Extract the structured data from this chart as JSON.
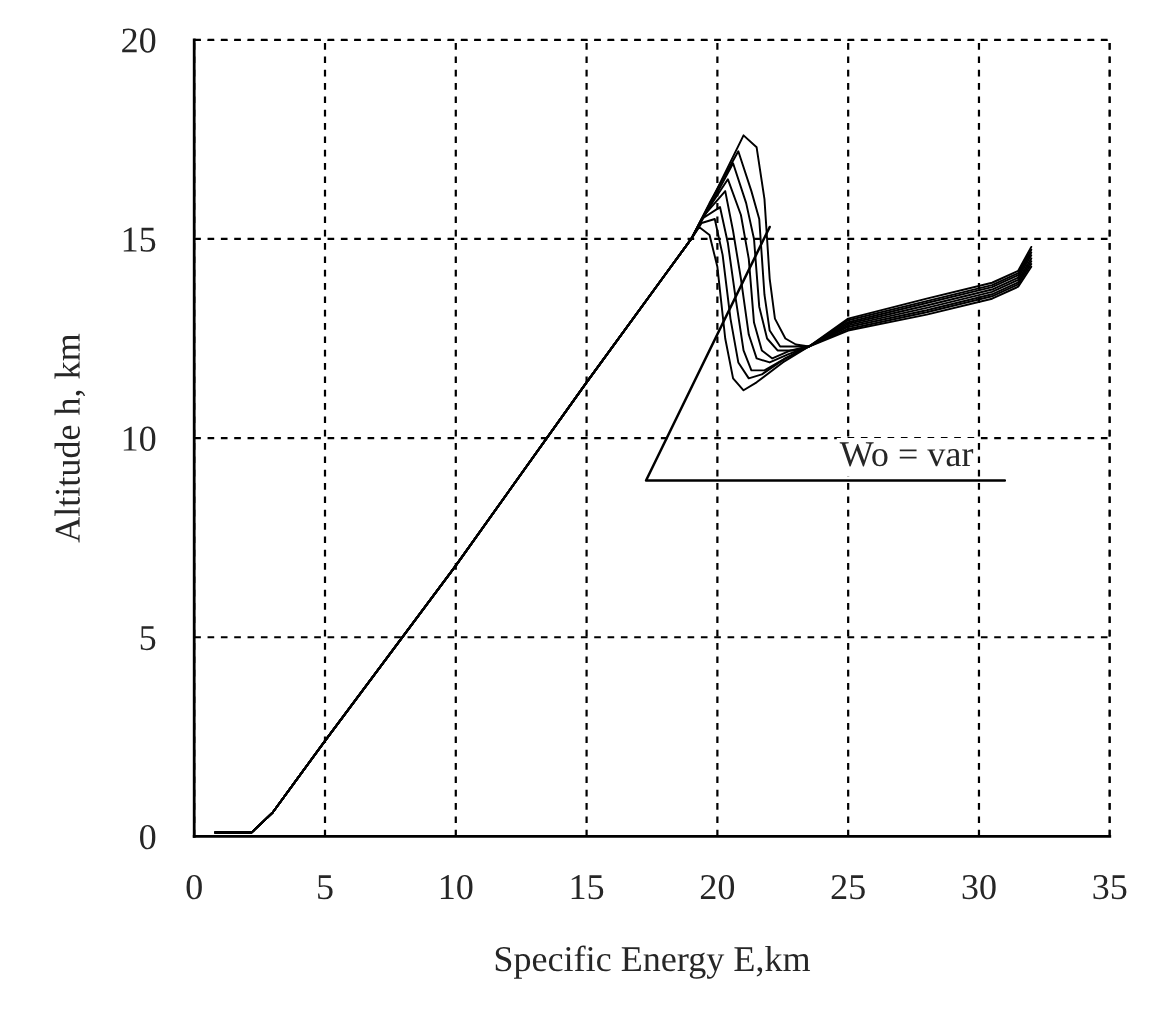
{
  "chart_data": {
    "type": "line",
    "xlabel": "Specific Energy E,km",
    "ylabel": "Altitude h, km",
    "xlim": [
      0,
      35
    ],
    "ylim": [
      0,
      20
    ],
    "xticks": [
      0,
      5,
      10,
      15,
      20,
      25,
      30,
      35
    ],
    "yticks": [
      0,
      5,
      10,
      15,
      20
    ],
    "grid": true,
    "marker": "none",
    "line_style": "solid",
    "annotations": [
      {
        "text": "Wo = var",
        "x": 22,
        "y": 15.3
      }
    ],
    "series": [
      {
        "color": "#000000",
        "x": [
          0.8,
          2.2,
          3,
          4,
          5,
          10,
          15,
          18,
          19.0,
          19.3,
          19.7,
          20.0,
          20.3,
          20.6,
          21.0,
          21.5,
          22.5,
          23.5,
          25,
          28,
          30.5,
          31.5,
          32
        ],
        "values": [
          0.1,
          0.1,
          0.6,
          1.5,
          2.4,
          6.8,
          11.4,
          14.1,
          15.0,
          15.3,
          15.1,
          14.3,
          12.5,
          11.5,
          11.2,
          11.4,
          11.9,
          12.3,
          12.7,
          13.1,
          13.5,
          13.8,
          14.3
        ]
      },
      {
        "color": "#000000",
        "x": [
          0.8,
          2.2,
          3,
          4,
          5,
          10,
          15,
          18,
          19.0,
          19.4,
          19.9,
          20.2,
          20.5,
          20.8,
          21.2,
          21.7,
          22.6,
          23.5,
          25,
          28,
          30.5,
          31.5,
          32
        ],
        "values": [
          0.1,
          0.1,
          0.6,
          1.5,
          2.4,
          6.8,
          11.4,
          14.1,
          15.0,
          15.4,
          15.5,
          14.6,
          13.0,
          11.9,
          11.5,
          11.6,
          12.0,
          12.3,
          12.74,
          13.16,
          13.56,
          13.86,
          14.37
        ]
      },
      {
        "color": "#000000",
        "x": [
          0.8,
          2.2,
          3,
          4,
          5,
          10,
          15,
          18,
          19.0,
          19.4,
          20.1,
          20.4,
          20.7,
          21.0,
          21.3,
          21.8,
          22.6,
          23.5,
          25,
          28,
          30.5,
          31.5,
          32
        ],
        "values": [
          0.1,
          0.1,
          0.6,
          1.5,
          2.4,
          6.8,
          11.4,
          14.1,
          15.0,
          15.5,
          15.8,
          14.9,
          13.5,
          12.2,
          11.7,
          11.7,
          12.0,
          12.3,
          12.79,
          13.21,
          13.61,
          13.91,
          14.44
        ]
      },
      {
        "color": "#000000",
        "x": [
          0.8,
          2.2,
          3,
          4,
          5,
          10,
          15,
          18,
          19.0,
          19.5,
          20.3,
          20.6,
          20.9,
          21.2,
          21.5,
          22.0,
          22.7,
          23.5,
          25,
          28,
          30.5,
          31.5,
          32
        ],
        "values": [
          0.1,
          0.1,
          0.6,
          1.5,
          2.4,
          6.8,
          11.4,
          14.1,
          15.0,
          15.6,
          16.2,
          15.2,
          14.0,
          12.6,
          12.0,
          11.9,
          12.1,
          12.3,
          12.83,
          13.27,
          13.67,
          13.97,
          14.51
        ]
      },
      {
        "color": "#000000",
        "x": [
          0.8,
          2.2,
          3,
          4,
          5,
          10,
          15,
          18,
          19.0,
          19.6,
          20.4,
          20.9,
          21.2,
          21.4,
          21.7,
          22.1,
          22.8,
          23.5,
          25,
          28,
          30.5,
          31.5,
          32
        ],
        "values": [
          0.1,
          0.1,
          0.6,
          1.5,
          2.4,
          6.8,
          11.4,
          14.1,
          15.0,
          15.7,
          16.5,
          15.6,
          14.5,
          12.9,
          12.2,
          12.0,
          12.2,
          12.3,
          12.87,
          13.33,
          13.73,
          14.03,
          14.59
        ]
      },
      {
        "color": "#000000",
        "x": [
          0.8,
          2.2,
          3,
          4,
          5,
          10,
          15,
          18,
          19.0,
          19.7,
          20.6,
          21.1,
          21.4,
          21.6,
          21.9,
          22.3,
          22.9,
          23.5,
          25,
          28,
          30.5,
          31.5,
          32
        ],
        "values": [
          0.1,
          0.1,
          0.6,
          1.5,
          2.4,
          6.8,
          11.4,
          14.1,
          15.0,
          15.8,
          16.9,
          15.9,
          15.0,
          13.3,
          12.5,
          12.2,
          12.2,
          12.3,
          12.91,
          13.39,
          13.79,
          14.09,
          14.66
        ]
      },
      {
        "color": "#000000",
        "x": [
          0.8,
          2.2,
          3,
          4,
          5,
          10,
          15,
          18,
          19.0,
          19.7,
          20.8,
          21.3,
          21.6,
          21.8,
          22.0,
          22.4,
          22.9,
          23.5,
          25,
          28,
          30.5,
          31.5,
          32
        ],
        "values": [
          0.1,
          0.1,
          0.6,
          1.5,
          2.4,
          6.8,
          11.4,
          14.1,
          15.0,
          15.9,
          17.2,
          16.2,
          15.5,
          13.6,
          12.7,
          12.3,
          12.3,
          12.3,
          12.96,
          13.44,
          13.84,
          14.14,
          14.73
        ]
      },
      {
        "color": "#000000",
        "x": [
          0.8,
          2.2,
          3,
          4,
          5,
          10,
          15,
          18,
          19.0,
          19.8,
          21.0,
          21.5,
          21.8,
          22.0,
          22.2,
          22.6,
          23.0,
          23.5,
          25,
          28,
          30.5,
          31.5,
          32
        ],
        "values": [
          0.1,
          0.1,
          0.6,
          1.5,
          2.4,
          6.8,
          11.4,
          14.1,
          15.0,
          16.0,
          17.6,
          17.3,
          16.0,
          14.0,
          13.0,
          12.5,
          12.35,
          12.3,
          13.0,
          13.5,
          13.9,
          14.2,
          14.8
        ]
      }
    ]
  }
}
